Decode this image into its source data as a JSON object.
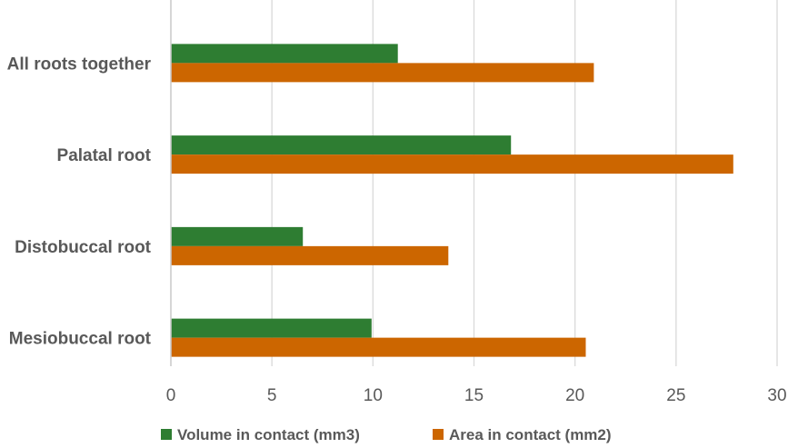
{
  "chart_data": {
    "type": "bar",
    "orientation": "horizontal",
    "categories": [
      "Mesiobuccal root",
      "Distobuccal root",
      "Palatal root",
      "All roots together"
    ],
    "series": [
      {
        "name": "Volume in contact (mm3)",
        "color": "#2e7d32",
        "values": [
          9.9,
          6.5,
          16.8,
          11.2
        ]
      },
      {
        "name": "Area in contact (mm2)",
        "color": "#cc6600",
        "values": [
          20.5,
          13.7,
          27.8,
          20.9
        ]
      }
    ],
    "xlim": [
      0,
      30
    ],
    "x_ticks": [
      "0",
      "5",
      "10",
      "15",
      "20",
      "25",
      "30"
    ],
    "tick_values": [
      0,
      5,
      10,
      15,
      20,
      25,
      30
    ],
    "grid": "vertical",
    "legend_position": "bottom",
    "title": "",
    "xlabel": "",
    "ylabel": ""
  }
}
